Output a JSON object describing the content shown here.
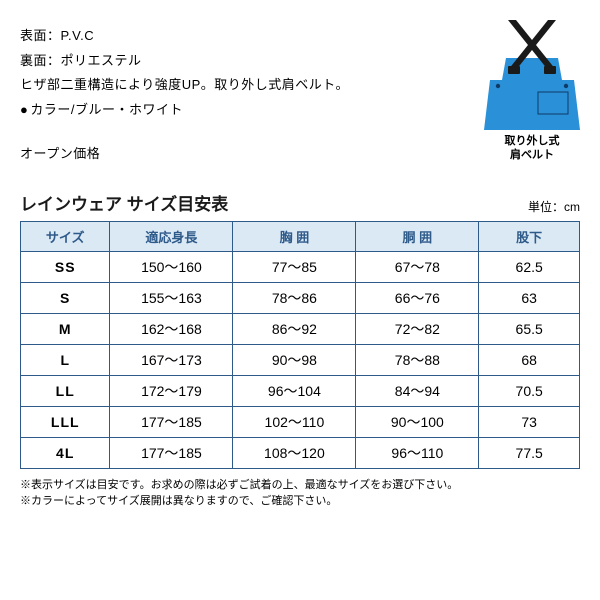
{
  "specs": {
    "surface": "表面：P.V.C",
    "back": "裏面：ポリエステル",
    "feature": "ヒザ部二重構造により強度UP。取り外し式肩ベルト。",
    "color": "カラー/ブルー・ホワイト",
    "price": "オープン価格"
  },
  "figure": {
    "caption_line1": "取り外し式",
    "caption_line2": "肩ベルト",
    "strap_color": "#1a1a1a",
    "bib_color": "#2a90d8",
    "buckle_color": "#1a1a1a"
  },
  "size_table": {
    "title": "レインウェア サイズ目安表",
    "unit": "単位：cm",
    "headers": [
      "サイズ",
      "適応身長",
      "胸 囲",
      "胴 囲",
      "股下"
    ],
    "col_classes": [
      "col-size",
      "col-height",
      "col-chest",
      "col-waist",
      "col-inseam"
    ],
    "rows": [
      [
        "SS",
        "150〜160",
        "77〜85",
        "67〜78",
        "62.5"
      ],
      [
        "S",
        "155〜163",
        "78〜86",
        "66〜76",
        "63"
      ],
      [
        "M",
        "162〜168",
        "86〜92",
        "72〜82",
        "65.5"
      ],
      [
        "L",
        "167〜173",
        "90〜98",
        "78〜88",
        "68"
      ],
      [
        "LL",
        "172〜179",
        "96〜104",
        "84〜94",
        "70.5"
      ],
      [
        "LLL",
        "177〜185",
        "102〜110",
        "90〜100",
        "73"
      ],
      [
        "4L",
        "177〜185",
        "108〜120",
        "96〜110",
        "77.5"
      ]
    ],
    "header_bg": "#dbe9f5",
    "border_color": "#2e5a8a",
    "header_text_color": "#2e5a8a"
  },
  "notes": [
    "※表示サイズは目安です。お求めの際は必ずご試着の上、最適なサイズをお選び下さい。",
    "※カラーによってサイズ展開は異なりますので、ご確認下さい。"
  ]
}
